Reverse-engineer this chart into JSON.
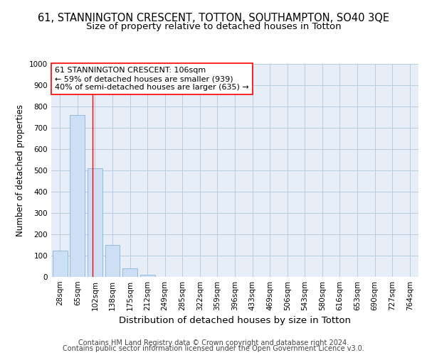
{
  "title": "61, STANNINGTON CRESCENT, TOTTON, SOUTHAMPTON, SO40 3QE",
  "subtitle": "Size of property relative to detached houses in Totton",
  "xlabel": "Distribution of detached houses by size in Totton",
  "ylabel": "Number of detached properties",
  "bar_labels": [
    "28sqm",
    "65sqm",
    "102sqm",
    "138sqm",
    "175sqm",
    "212sqm",
    "249sqm",
    "285sqm",
    "322sqm",
    "359sqm",
    "396sqm",
    "433sqm",
    "469sqm",
    "506sqm",
    "543sqm",
    "580sqm",
    "616sqm",
    "653sqm",
    "690sqm",
    "727sqm",
    "764sqm"
  ],
  "bar_values": [
    125,
    760,
    510,
    150,
    40,
    11,
    0,
    0,
    0,
    0,
    0,
    0,
    0,
    0,
    0,
    0,
    0,
    0,
    0,
    0,
    0
  ],
  "bar_color": "#ccdff5",
  "bar_edge_color": "#8ab4d8",
  "grid_color": "#b8cde0",
  "background_color": "#e8eef8",
  "property_label": "61 STANNINGTON CRESCENT: 106sqm",
  "annotation_line1": "← 59% of detached houses are smaller (939)",
  "annotation_line2": "40% of semi-detached houses are larger (635) →",
  "ylim": [
    0,
    1000
  ],
  "yticks": [
    0,
    100,
    200,
    300,
    400,
    500,
    600,
    700,
    800,
    900,
    1000
  ],
  "footer_line1": "Contains HM Land Registry data © Crown copyright and database right 2024.",
  "footer_line2": "Contains public sector information licensed under the Open Government Licence v3.0.",
  "title_fontsize": 10.5,
  "subtitle_fontsize": 9.5,
  "xlabel_fontsize": 9.5,
  "ylabel_fontsize": 8.5,
  "tick_fontsize": 7.5,
  "annotation_fontsize": 8,
  "footer_fontsize": 7
}
